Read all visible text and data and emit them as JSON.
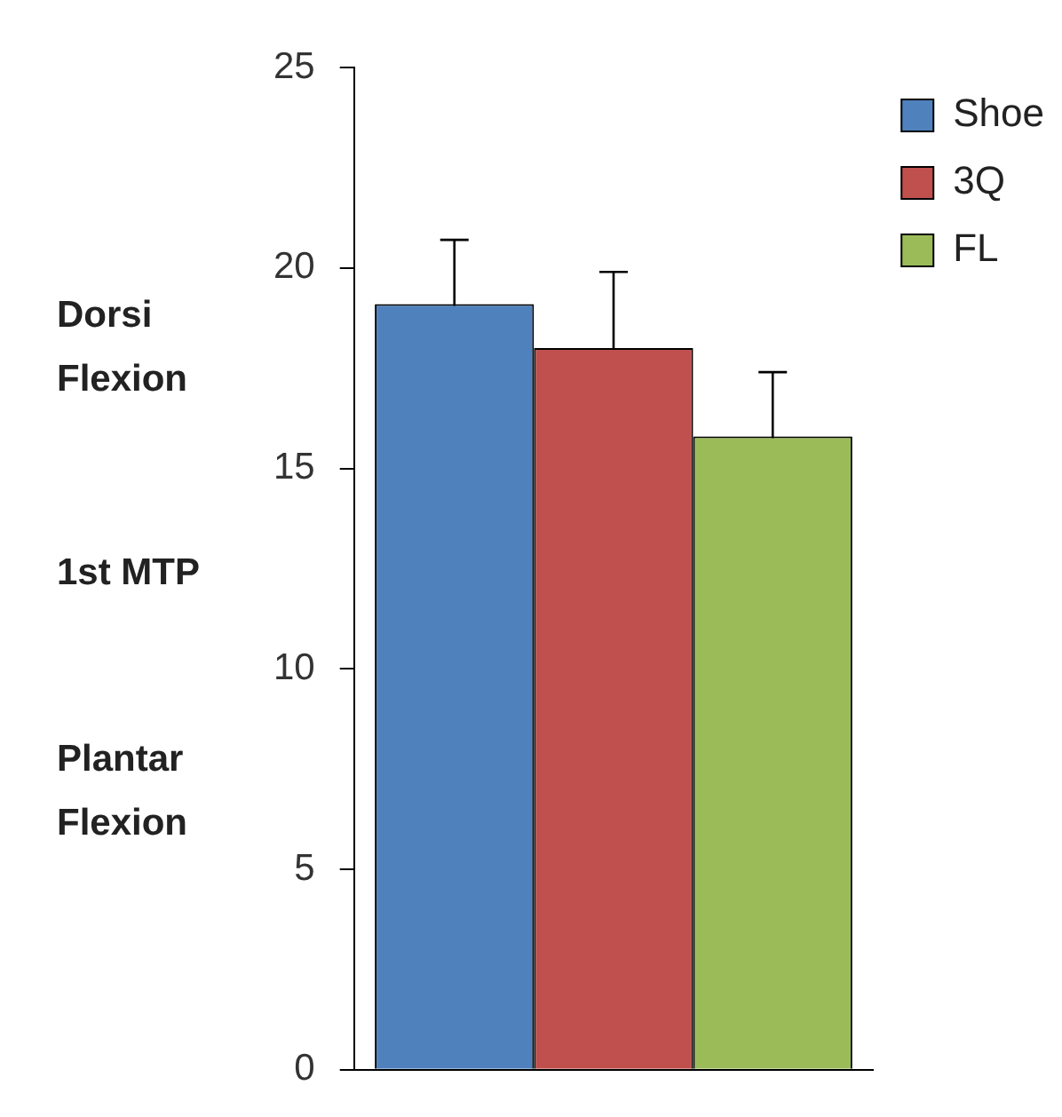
{
  "chart_data": {
    "type": "bar",
    "categories": [
      null
    ],
    "series": [
      {
        "name": "Shoe",
        "color": "#4f81bd",
        "values": [
          19.1
        ],
        "errors": [
          1.6
        ]
      },
      {
        "name": "3Q",
        "color": "#c0504d",
        "values": [
          18.0
        ],
        "errors": [
          1.9
        ]
      },
      {
        "name": "FL",
        "color": "#9bbb59",
        "values": [
          15.8
        ],
        "errors": [
          1.6
        ]
      }
    ],
    "ylim": [
      0,
      25
    ],
    "yticks": [
      0,
      5,
      10,
      15,
      20,
      25
    ],
    "grid": false,
    "legend": "top right",
    "tick_labels": "y",
    "annotations": [
      "Dorsi Flexion",
      "1st MTP",
      "Plantar Flexion"
    ]
  }
}
